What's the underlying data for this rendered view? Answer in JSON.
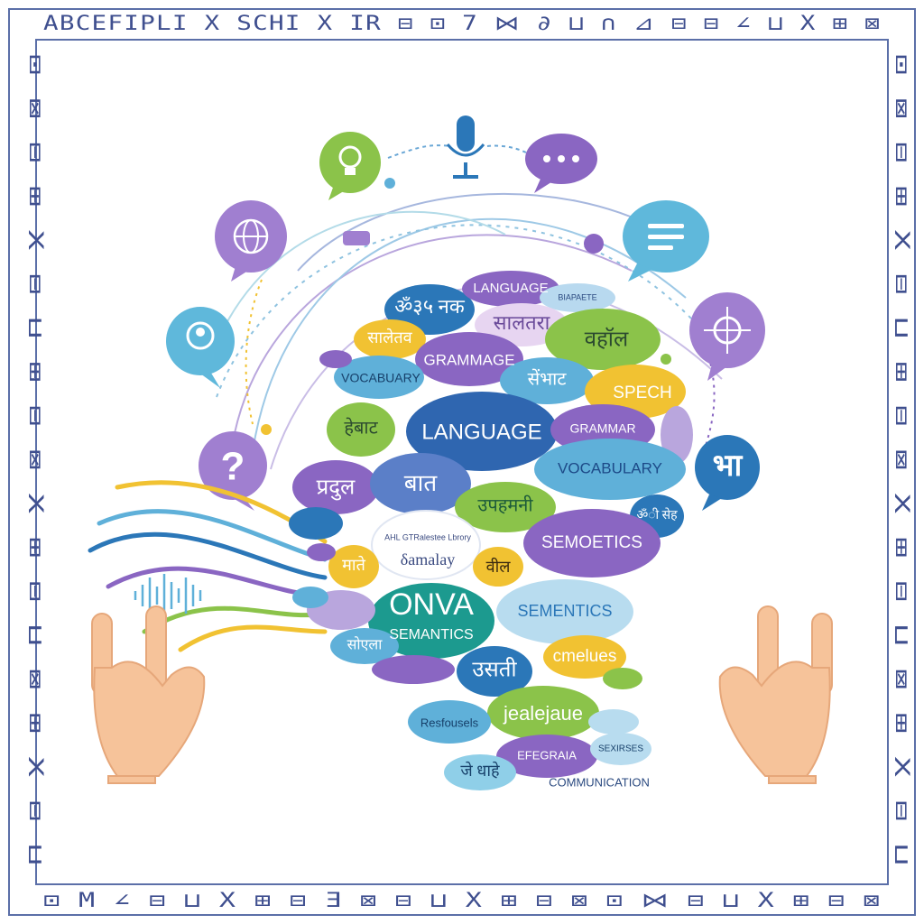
{
  "border": {
    "top_text": "ABCEFIPLI X SCHI X IR ⊟ ⊡ 7 ⋈ ∂ ⊔ ∩ ⊿ ⊟ ⊟ ∠ ⊔ X ⊞ ⊠",
    "bottom_text": "⊡ M ∠ ⊟ ⊔ X ⊞ ⊟ Ǝ ⊠ ⊟ ⊔ X ⊞ ⊟ ⊠ ⊡ ⋈ ⊟ ⊔ X ⊞ ⊟ ⊠",
    "left_text": "⊡ ⊠ ⊟ ⊞ X ⊟ ⊔ ⊞ ⊟ ⊠ X ⊞ ⊟ ⊔ ⊠ ⊞ X ⊟ ⊔",
    "right_text": "⊡ ⊠ ⊟ ⊞ X ⊟ ⊔ ⊞ ⊟ ⊠ X ⊞ ⊟ ⊔ ⊠ ⊞ X ⊟ ⊔",
    "color": "#3f4f8f"
  },
  "icons": {
    "lightbulb": "lightbulb-icon",
    "microphone": "microphone-icon",
    "ellipsis": "ellipsis-chat-icon",
    "globe": "globe-icon",
    "chat_lines": "chat-lines-icon",
    "user": "user-chat-icon",
    "brain_network": "network-icon",
    "question": "question-icon",
    "hindi_char": "भा"
  },
  "words": [
    {
      "key": "w1",
      "text": "ॐ३५ नक",
      "color": "#2b77b8"
    },
    {
      "key": "w2",
      "text": "LANGUAGE",
      "color": "#8a66c2"
    },
    {
      "key": "w3",
      "text": "BIAPAETE",
      "color": "#2b77b8"
    },
    {
      "key": "w4",
      "text": "सालतरा",
      "color": "#c99be0"
    },
    {
      "key": "w5",
      "text": "सालेतव",
      "color": "#f1c232"
    },
    {
      "key": "w6",
      "text": "GRAMMAGE",
      "color": "#8a66c2"
    },
    {
      "key": "w7",
      "text": "वहॉल",
      "color": "#8bc34a"
    },
    {
      "key": "w8",
      "text": "VOCABUARY",
      "color": "#5fb0d9"
    },
    {
      "key": "w9",
      "text": "सेंभाट",
      "color": "#2b77b8"
    },
    {
      "key": "w10",
      "text": "SPECH",
      "color": "#f1c232"
    },
    {
      "key": "w11",
      "text": "LANGUAGE",
      "color": "#2f66b0"
    },
    {
      "key": "w12",
      "text": "हेबाट",
      "color": "#8bc34a"
    },
    {
      "key": "w13",
      "text": "GRAMMAR",
      "color": "#8a66c2"
    },
    {
      "key": "w14",
      "text": "VOCABULARY",
      "color": "#5fb0d9"
    },
    {
      "key": "w15",
      "text": "प्रदुल",
      "color": "#8a66c2"
    },
    {
      "key": "w16",
      "text": "बात",
      "color": "#2b77b8"
    },
    {
      "key": "w17",
      "text": "उपहमनी",
      "color": "#4caf78"
    },
    {
      "key": "w18",
      "text": "ॐी सेह",
      "color": "#2b77b8"
    },
    {
      "key": "w19",
      "text": "SEMOETICS",
      "color": "#8a66c2"
    },
    {
      "key": "w20",
      "text": "माते",
      "color": "#f1c232"
    },
    {
      "key": "w21",
      "text": "वील",
      "color": "#f1c232"
    },
    {
      "key": "w22",
      "text": "ONVA",
      "color": "#1c9a8f"
    },
    {
      "key": "w23",
      "text": "SEMANTICS",
      "color": "#1c9a8f"
    },
    {
      "key": "w24",
      "text": "SEMENTICS",
      "color": "#5fb0d9"
    },
    {
      "key": "w25",
      "text": "उसती",
      "color": "#2b77b8"
    },
    {
      "key": "w26",
      "text": "cmelues",
      "color": "#f1c232"
    },
    {
      "key": "w27",
      "text": "jealejaue",
      "color": "#8bc34a"
    },
    {
      "key": "w28",
      "text": "Resfousels",
      "color": "#5fb0d9"
    },
    {
      "key": "w29",
      "text": "EFEGRAIA",
      "color": "#8a66c2"
    },
    {
      "key": "w30",
      "text": "जे धाहे",
      "color": "#5fb0d9"
    },
    {
      "key": "w31",
      "text": "SEXIRSES",
      "color": "#5fb0d9"
    },
    {
      "key": "w32",
      "text": "सोएला",
      "color": "#5fb0d9"
    },
    {
      "key": "w33",
      "text": "δamalay",
      "color": "#ffffff"
    }
  ],
  "center_small_text": "AHL GTRalestee Lbrory",
  "footer_word": "COMMUNICATION",
  "palette": {
    "purple": "#8a66c2",
    "blue": "#2b77b8",
    "light_blue": "#5fb0d9",
    "green": "#8bc34a",
    "yellow": "#f1c232",
    "teal": "#1c9a8f",
    "skin": "#f6c39a"
  }
}
